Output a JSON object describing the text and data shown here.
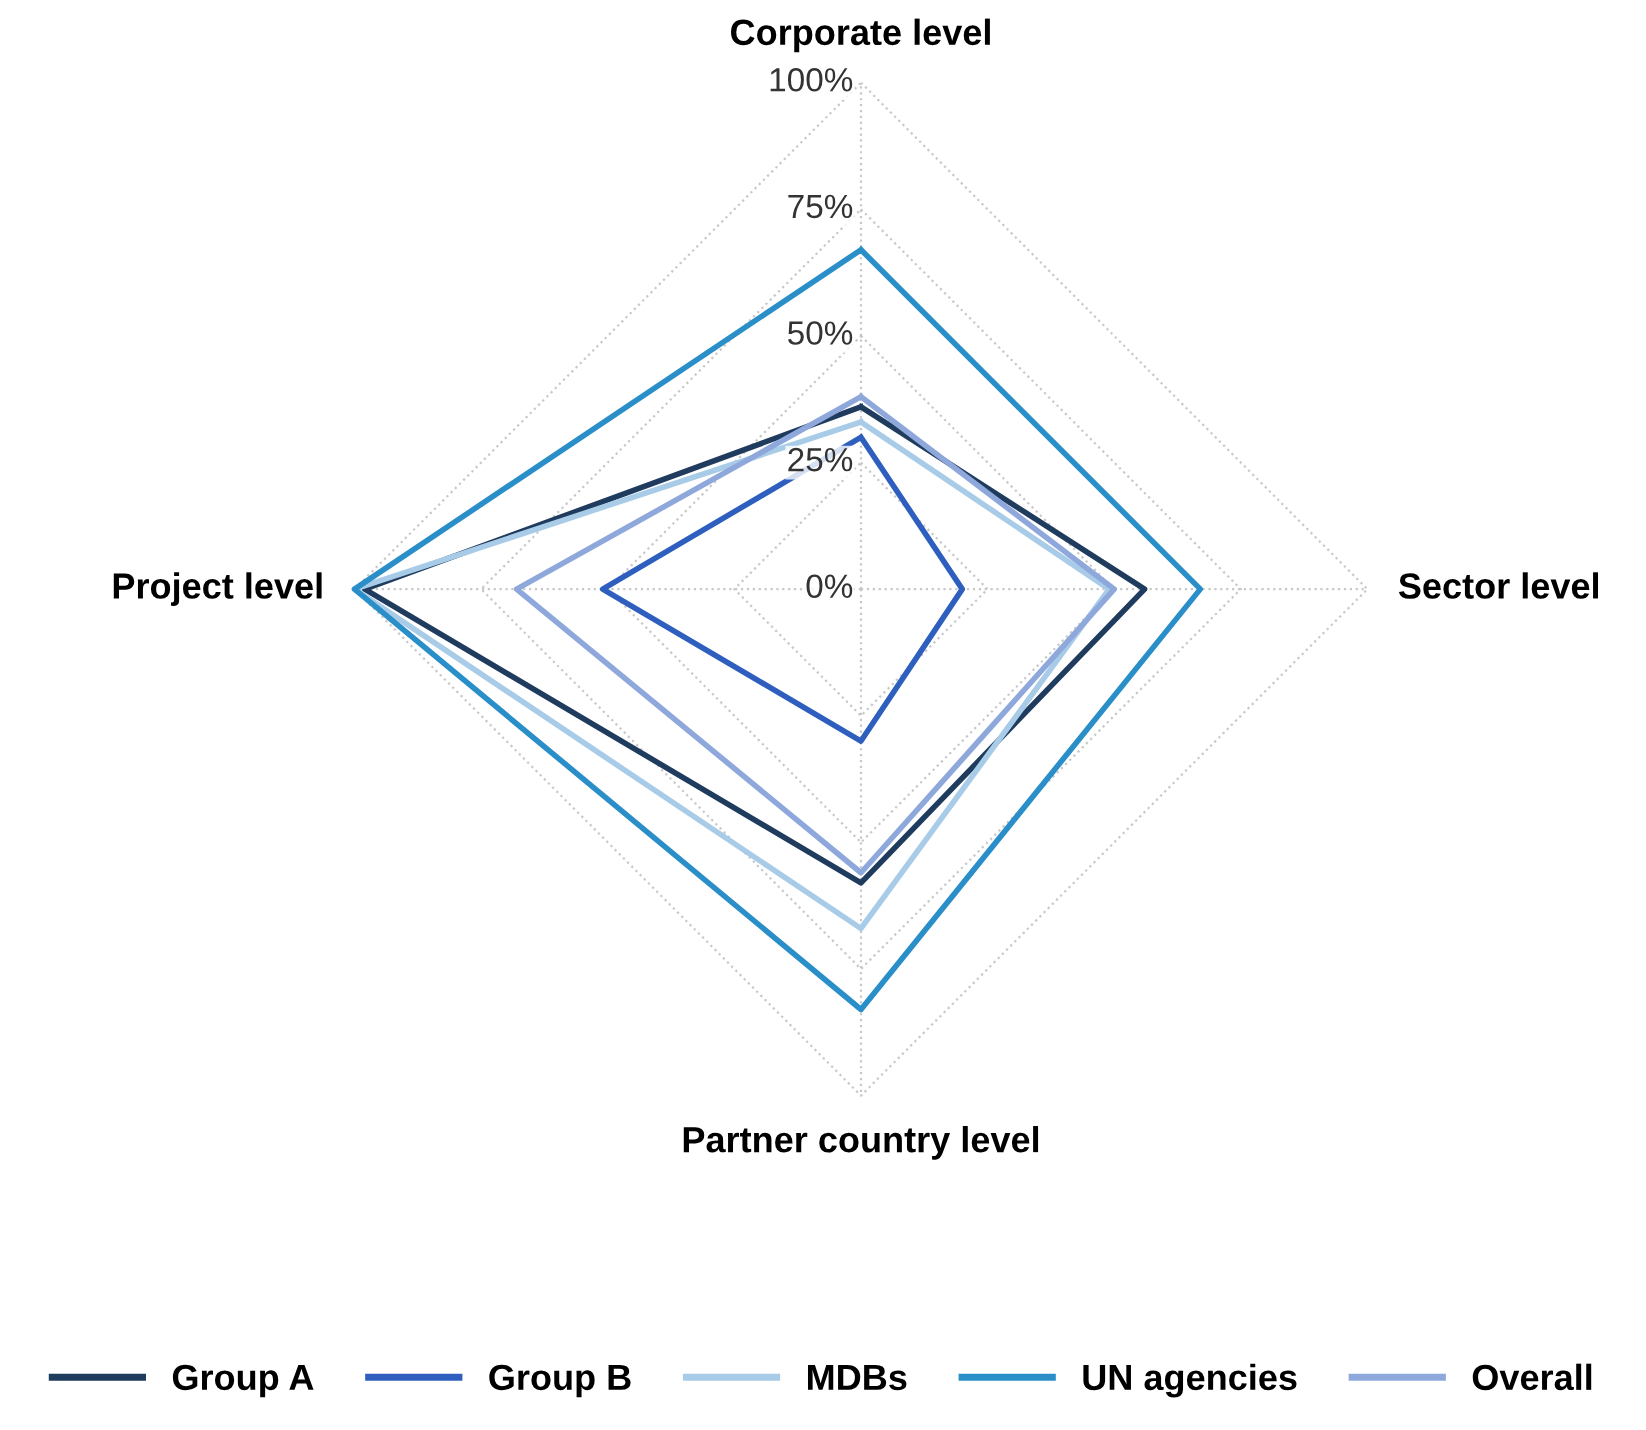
{
  "chart_data": {
    "type": "radar",
    "categories": [
      "Corporate level",
      "Sector level",
      "Partner country level",
      "Project level"
    ],
    "series": [
      {
        "name": "Group A",
        "color": "#1f3b5e",
        "values": [
          36,
          56,
          58,
          98
        ]
      },
      {
        "name": "Group B",
        "color": "#2e5fbf",
        "values": [
          30,
          20,
          30,
          51
        ]
      },
      {
        "name": "MDBs",
        "color": "#a8cbe8",
        "values": [
          33,
          49,
          67,
          100
        ]
      },
      {
        "name": "UN agencies",
        "color": "#2a8fc9",
        "values": [
          67,
          67,
          83,
          100
        ]
      },
      {
        "name": "Overall",
        "color": "#8fa8dc",
        "values": [
          38,
          50,
          56,
          68
        ]
      }
    ],
    "ylim": [
      0,
      100
    ],
    "yticks": [
      {
        "value": 0,
        "label": "0%"
      },
      {
        "value": 25,
        "label": "25%"
      },
      {
        "value": 50,
        "label": "50%"
      },
      {
        "value": 75,
        "label": "75%"
      },
      {
        "value": 100,
        "label": "100%"
      }
    ],
    "grid": true,
    "legend": "bottom",
    "marker": "none",
    "line_style": "solid"
  }
}
